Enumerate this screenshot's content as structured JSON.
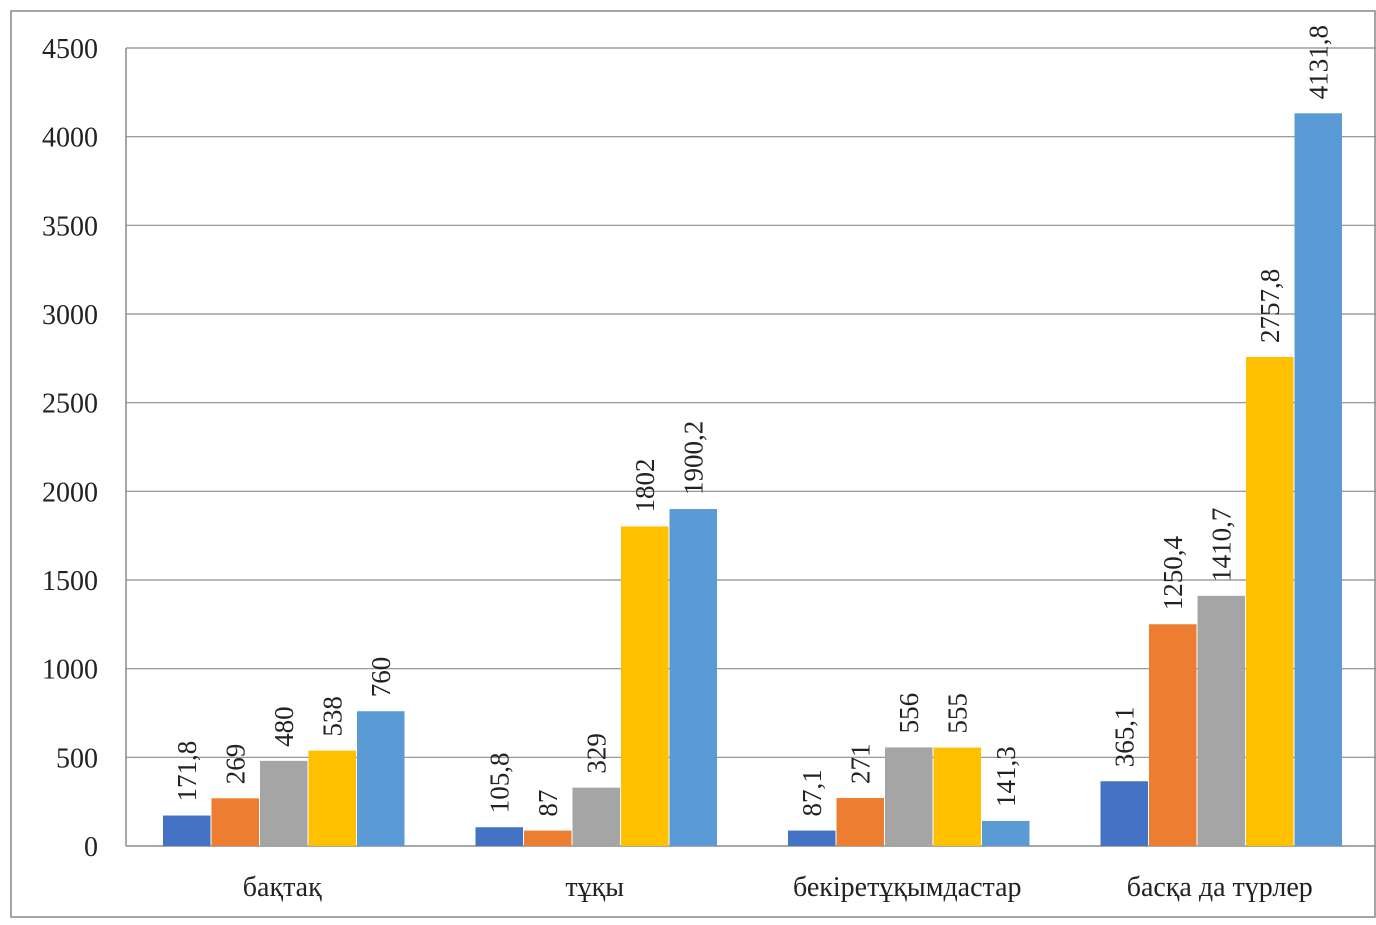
{
  "chart_data": {
    "type": "bar",
    "title": "",
    "xlabel": "",
    "ylabel": "",
    "categories": [
      "бақтақ",
      "тұқы",
      "бекіретұқымдастар",
      "басқа да түрлер"
    ],
    "ylim": [
      0,
      4500
    ],
    "yticks": [
      0,
      500,
      1000,
      1500,
      2000,
      2500,
      3000,
      3500,
      4000,
      4500
    ],
    "grid": true,
    "legend": "none",
    "series": [
      {
        "color": "#4472C4",
        "values": [
          171.8,
          105.8,
          87.1,
          365.1
        ],
        "labels": [
          "171,8",
          "105,8",
          "87,1",
          "365,1"
        ]
      },
      {
        "color": "#ED7D31",
        "values": [
          269,
          87,
          271,
          1250.4
        ],
        "labels": [
          "269",
          "87",
          "271",
          "1250,4"
        ]
      },
      {
        "color": "#A5A5A5",
        "values": [
          480,
          329,
          556,
          1410.7
        ],
        "labels": [
          "480",
          "329",
          "556",
          "1410,7"
        ]
      },
      {
        "color": "#FFC000",
        "values": [
          538,
          1802,
          555,
          2757.8
        ],
        "labels": [
          "538",
          "1802",
          "555",
          "2757,8"
        ]
      },
      {
        "color": "#5B9BD5",
        "values": [
          760,
          1900.2,
          141.3,
          4131.8
        ],
        "labels": [
          "760",
          "1900,2",
          "141,3",
          "4131,8"
        ]
      }
    ]
  }
}
